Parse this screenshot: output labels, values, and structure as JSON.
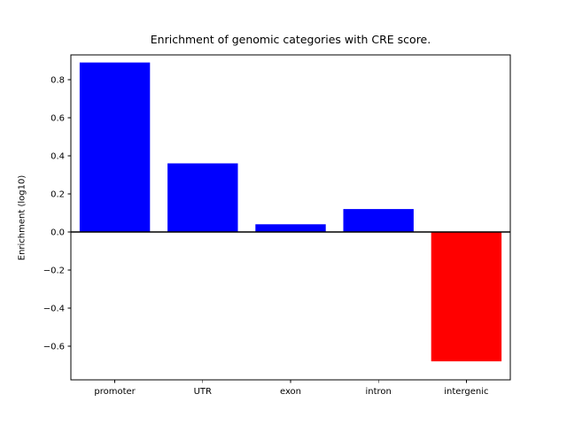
{
  "chart_data": {
    "type": "bar",
    "title": "Enrichment of genomic categories with CRE score.",
    "xlabel": "",
    "ylabel": "Enrichment (log10)",
    "categories": [
      "promoter",
      "UTR",
      "exon",
      "intron",
      "intergenic"
    ],
    "values": [
      0.89,
      0.36,
      0.04,
      0.12,
      -0.68
    ],
    "ylim": [
      -0.777,
      0.93
    ],
    "yticks": [
      {
        "value": -0.6,
        "label": "−0.6"
      },
      {
        "value": -0.4,
        "label": "−0.4"
      },
      {
        "value": -0.2,
        "label": "−0.2"
      },
      {
        "value": 0.0,
        "label": "0.0"
      },
      {
        "value": 0.2,
        "label": "0.2"
      },
      {
        "value": 0.4,
        "label": "0.4"
      },
      {
        "value": 0.6,
        "label": "0.6"
      },
      {
        "value": 0.8,
        "label": "0.8"
      }
    ],
    "colors": {
      "positive": "#0000ff",
      "negative": "#ff0000"
    },
    "baseline": 0,
    "grid": false,
    "legend": "none"
  }
}
